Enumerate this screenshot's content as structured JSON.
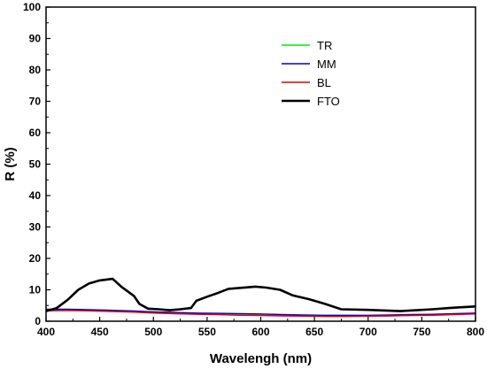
{
  "chart_data": {
    "type": "line",
    "title": "",
    "xlabel": "Wavelengh (nm)",
    "ylabel": "R (%)",
    "xlim": [
      400,
      800
    ],
    "ylim": [
      0,
      100
    ],
    "xticks": [
      400,
      450,
      500,
      550,
      600,
      650,
      700,
      750,
      800
    ],
    "yticks": [
      0,
      10,
      20,
      30,
      40,
      50,
      60,
      70,
      80,
      90,
      100
    ],
    "grid": false,
    "legend_position": "top-right",
    "series": [
      {
        "name": "TR",
        "color": "#00ee00",
        "x": [
          400,
          420,
          440,
          460,
          480,
          500,
          520,
          540,
          560,
          580,
          600,
          620,
          640,
          660,
          680,
          700,
          720,
          740,
          760,
          780,
          800
        ],
        "y": [
          3.5,
          3.6,
          3.5,
          3.3,
          3.0,
          2.7,
          2.5,
          2.3,
          2.2,
          2.0,
          1.9,
          1.8,
          1.7,
          1.6,
          1.6,
          1.6,
          1.7,
          1.8,
          2.0,
          2.2,
          2.4
        ]
      },
      {
        "name": "MM",
        "color": "#0000cc",
        "x": [
          400,
          420,
          440,
          460,
          480,
          500,
          520,
          540,
          560,
          580,
          600,
          620,
          640,
          660,
          680,
          700,
          720,
          740,
          760,
          780,
          800
        ],
        "y": [
          3.8,
          3.8,
          3.7,
          3.5,
          3.3,
          3.0,
          2.8,
          2.6,
          2.5,
          2.4,
          2.3,
          2.1,
          2.0,
          1.9,
          1.9,
          1.9,
          2.0,
          2.1,
          2.2,
          2.4,
          2.6
        ]
      },
      {
        "name": "BL",
        "color": "#ee0000",
        "x": [
          400,
          420,
          440,
          460,
          480,
          500,
          520,
          540,
          560,
          580,
          600,
          620,
          640,
          660,
          680,
          700,
          720,
          740,
          760,
          780,
          800
        ],
        "y": [
          3.3,
          3.4,
          3.3,
          3.1,
          2.9,
          2.6,
          2.4,
          2.2,
          2.1,
          1.9,
          1.8,
          1.7,
          1.6,
          1.5,
          1.5,
          1.6,
          1.7,
          1.8,
          1.9,
          2.1,
          2.3
        ]
      },
      {
        "name": "FTO",
        "color": "#000000",
        "x": [
          400,
          410,
          420,
          430,
          440,
          450,
          462,
          470,
          482,
          487,
          495,
          505,
          515,
          525,
          535,
          540,
          550,
          560,
          570,
          580,
          595,
          605,
          618,
          630,
          645,
          660,
          675,
          700,
          730,
          760,
          780,
          800
        ],
        "y": [
          3.2,
          4.2,
          6.8,
          10.0,
          12.0,
          13.0,
          13.5,
          11.0,
          8.0,
          5.5,
          4.0,
          3.8,
          3.5,
          3.8,
          4.2,
          6.5,
          7.8,
          9.0,
          10.3,
          10.6,
          11.0,
          10.7,
          10.0,
          8.2,
          7.0,
          5.5,
          3.8,
          3.6,
          3.2,
          3.8,
          4.3,
          4.7
        ]
      }
    ]
  }
}
